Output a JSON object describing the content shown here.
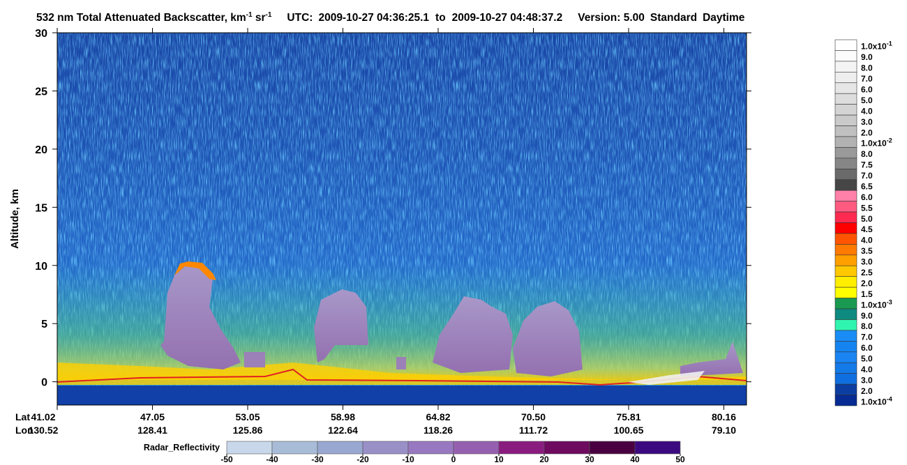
{
  "chart_data": {
    "type": "curtain",
    "title": {
      "text": "532 nm Total Attenuated Backscatter, km",
      "exp1": "-1",
      "unit2": " sr",
      "exp2": "-1"
    },
    "time_range": {
      "label": "UTC:",
      "start": "2009-10-27 04:36:25.1",
      "joiner": "to",
      "end": "2009-10-27 04:48:37.2"
    },
    "version": "Version: 5.00",
    "product": "Standard",
    "lighting": "Daytime",
    "y_label": "Altitude, km",
    "ylim": [
      -2,
      30
    ],
    "yticks": [
      0,
      5,
      10,
      15,
      20,
      25,
      30
    ],
    "x_ticks": {
      "lat_label": "Lat",
      "lon_label": "Lon",
      "lat": [
        "41.02",
        "47.05",
        "53.05",
        "58.98",
        "64.82",
        "70.50",
        "75.81",
        "80.16"
      ],
      "lon": [
        "130.52",
        "128.41",
        "125.86",
        "122.64",
        "118.26",
        "111.72",
        "100.65",
        "79.10"
      ]
    },
    "backscatter_colorbar": {
      "labels": [
        {
          "text": "1.0x10",
          "sup": "-1"
        },
        "9.0",
        "8.0",
        "7.0",
        "6.0",
        "5.0",
        "4.0",
        "3.0",
        "2.0",
        {
          "text": "1.0x10",
          "sup": "-2"
        },
        "8.0",
        "7.5",
        "7.0",
        "6.5",
        "6.0",
        "5.5",
        "5.0",
        "4.5",
        "4.0",
        "3.5",
        "3.0",
        "2.5",
        "2.0",
        "1.5",
        {
          "text": "1.0x10",
          "sup": "-3"
        },
        "9.0",
        "8.0",
        "7.0",
        "6.0",
        "5.0",
        "4.0",
        "3.0",
        "2.0",
        {
          "text": "1.0x10",
          "sup": "-4"
        }
      ],
      "colors": [
        "#ffffff",
        "#fbfbfb",
        "#f4f4f4",
        "#eeeeee",
        "#e6e6e6",
        "#dddddd",
        "#d4d4d4",
        "#cacaca",
        "#c0c0c0",
        "#b2b2b2",
        "#9a9a9a",
        "#868686",
        "#6a6a6a",
        "#464646",
        "#ff80a8",
        "#ff5a80",
        "#ff2a50",
        "#ff0000",
        "#ff5500",
        "#ff7a00",
        "#ff9f00",
        "#ffc800",
        "#ffee00",
        "#ffff00",
        "#1a9a50",
        "#0e8a80",
        "#30f5b0",
        "#1a8cf5",
        "#1684f0",
        "#1a84f2",
        "#137ae8",
        "#0f6fe0",
        "#0b3ea0",
        "#062b93"
      ]
    },
    "radar_colorbar": {
      "label": "Radar_Reflectivity",
      "lim": [
        -50,
        50
      ],
      "ticks": [
        -50,
        -40,
        -30,
        -20,
        -10,
        0,
        10,
        20,
        30,
        40,
        50
      ],
      "colors": [
        "#c8d8ea",
        "#a8bcd8",
        "#98a8d0",
        "#9a90c8",
        "#9878c0",
        "#9660b0",
        "#8a1c80",
        "#6e0a60",
        "#4a0040",
        "#3c0a80"
      ]
    }
  }
}
